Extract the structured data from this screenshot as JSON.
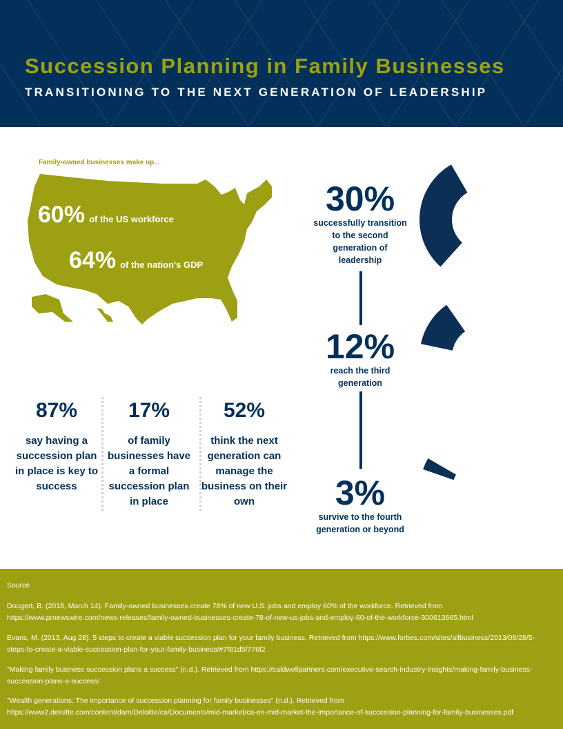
{
  "header": {
    "title": "Succession Planning in Family Businesses",
    "subtitle": "TRANSITIONING TO THE NEXT GENERATION OF LEADERSHIP"
  },
  "map": {
    "label": "Family-owned businesses make up...",
    "stats": [
      {
        "value": "60%",
        "text": "of the US workforce"
      },
      {
        "value": "64%",
        "text": "of the nation's GDP"
      }
    ]
  },
  "stats": [
    {
      "value": "87%",
      "text": "say having a succession plan in place is key to success"
    },
    {
      "value": "17%",
      "text": "of family businesses have a formal succession plan in place"
    },
    {
      "value": "52%",
      "text": "think the next generation can manage the business on their own"
    }
  ],
  "chart_data": [
    {
      "type": "pie",
      "donut": true,
      "value": "30%",
      "percent": 30,
      "label": "successfully transition to the second generation of leadership"
    },
    {
      "type": "pie",
      "donut": true,
      "value": "12%",
      "percent": 12,
      "label": "reach the third generation"
    },
    {
      "type": "pie",
      "donut": true,
      "value": "3%",
      "percent": 3,
      "label": "survive to the fourth generation or beyond"
    }
  ],
  "colors": {
    "navy": "#03305a",
    "olive": "#9da012",
    "donut_light": "#4f6f8d",
    "donut_dark": "#0b2f55"
  },
  "sources": {
    "heading": "Source",
    "items": [
      "Dougert, B. (2018, March 14). Family-owned businesses create 78% of new U.S. jobs and employ 60% of the workforce. Retrieved from https://www.prnewswire.com/news-releases/family-owned-businesses-create-78-of-new-us-jobs-and-employ-60-of-the-workforce-300613665.html",
      "Evans, M. (2013, Aug 28). 5 steps to create a viable succession plan for your family business. Retrieved from https://www.forbes.com/sites/allbusiness/2013/08/28/5-steps-to-create-a-viable-succession-plan-for-your-family-business/#7f81d5f776f2",
      "\"Making family business succession plans a success\" (n.d.). Retrieved from https://caldwellpartners.com/executive-search-industry-insights/making-family-business-succession-plans-a-success/",
      "\"Wealth generations: The importance of succession planning for family businesses\" (n.d.). Retrieved from https://www2.deloitte.com/content/dam/Deloitte/ca/Documents/mid-market/ca-en-mid-market-the-importance-of-succession-planning-for-family-businesses.pdf"
    ]
  }
}
